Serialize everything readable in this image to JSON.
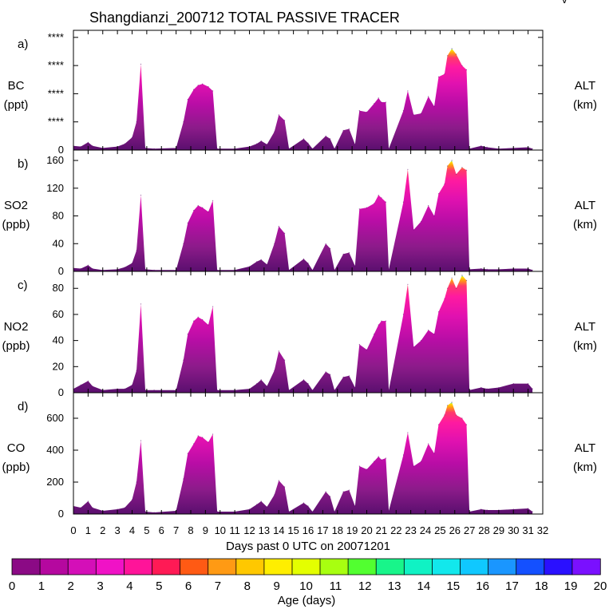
{
  "chart_data": {
    "type": "area",
    "title": "Shangdianzi_200712 TOTAL PASSIVE TRACER",
    "corner_mark": "v",
    "xlabel": "Days past 0 UTC on 20071201",
    "x_ticks": [
      "0",
      "1",
      "2",
      "3",
      "4",
      "5",
      "6",
      "7",
      "8",
      "9",
      "10",
      "11",
      "12",
      "13",
      "14",
      "15",
      "16",
      "17",
      "18",
      "19",
      "20",
      "21",
      "22",
      "23",
      "24",
      "25",
      "26",
      "27",
      "28",
      "29",
      "30",
      "31",
      "32"
    ],
    "xlim": [
      0,
      32
    ],
    "right_label": "ALT",
    "right_unit": "(km)",
    "panels": [
      {
        "letter": "a)",
        "species": "BC",
        "unit": "(ppt)",
        "ylim": [
          0,
          8500
        ],
        "y_ticks": [
          {
            "v": 0,
            "t": "0"
          },
          {
            "v": 2000,
            "t": "****"
          },
          {
            "v": 4000,
            "t": "****"
          },
          {
            "v": 6000,
            "t": "****"
          },
          {
            "v": 8000,
            "t": "****"
          }
        ],
        "series": [
          [
            0,
            300
          ],
          [
            0.5,
            250
          ],
          [
            1,
            550
          ],
          [
            1.3,
            300
          ],
          [
            2,
            150
          ],
          [
            3,
            250
          ],
          [
            3.5,
            450
          ],
          [
            4,
            900
          ],
          [
            4.3,
            2000
          ],
          [
            4.6,
            6100
          ],
          [
            4.9,
            150
          ],
          [
            5.5,
            100
          ],
          [
            7,
            150
          ],
          [
            7.5,
            2000
          ],
          [
            7.8,
            3600
          ],
          [
            8.2,
            4300
          ],
          [
            8.5,
            4600
          ],
          [
            8.8,
            4700
          ],
          [
            9.2,
            4500
          ],
          [
            9.5,
            4200
          ],
          [
            9.8,
            100
          ],
          [
            11,
            100
          ],
          [
            12,
            250
          ],
          [
            12.5,
            450
          ],
          [
            12.8,
            650
          ],
          [
            13.2,
            400
          ],
          [
            13.7,
            1300
          ],
          [
            14,
            2500
          ],
          [
            14.4,
            2100
          ],
          [
            14.7,
            100
          ],
          [
            15.7,
            800
          ],
          [
            16,
            500
          ],
          [
            16.3,
            100
          ],
          [
            17.2,
            1000
          ],
          [
            17.5,
            800
          ],
          [
            17.8,
            100
          ],
          [
            18.4,
            1400
          ],
          [
            18.8,
            1500
          ],
          [
            19.2,
            400
          ],
          [
            19.5,
            2800
          ],
          [
            20,
            2700
          ],
          [
            20.5,
            3300
          ],
          [
            20.8,
            3700
          ],
          [
            21,
            3400
          ],
          [
            21.3,
            3400
          ],
          [
            21.5,
            100
          ],
          [
            22.5,
            2800
          ],
          [
            22.8,
            4200
          ],
          [
            23.2,
            2500
          ],
          [
            23.7,
            2600
          ],
          [
            24.2,
            3800
          ],
          [
            24.6,
            3100
          ],
          [
            24.9,
            5200
          ],
          [
            25.3,
            5400
          ],
          [
            25.5,
            6700
          ],
          [
            25.8,
            7200
          ],
          [
            26.1,
            6800
          ],
          [
            26.5,
            6000
          ],
          [
            26.8,
            5700
          ],
          [
            27,
            100
          ],
          [
            27.8,
            300
          ],
          [
            28.2,
            200
          ],
          [
            29,
            100
          ],
          [
            30,
            150
          ],
          [
            31,
            200
          ],
          [
            31.3,
            100
          ]
        ]
      },
      {
        "letter": "b)",
        "species": "SO2",
        "unit": "(ppb)",
        "ylim": [
          0,
          175
        ],
        "y_ticks": [
          {
            "v": 0,
            "t": "0"
          },
          {
            "v": 40,
            "t": "40"
          },
          {
            "v": 80,
            "t": "80"
          },
          {
            "v": 120,
            "t": "120"
          },
          {
            "v": 160,
            "t": "160"
          }
        ],
        "series": [
          [
            0,
            5
          ],
          [
            0.5,
            4
          ],
          [
            1,
            9
          ],
          [
            1.3,
            4
          ],
          [
            2,
            2
          ],
          [
            3,
            3
          ],
          [
            3.5,
            6
          ],
          [
            4,
            12
          ],
          [
            4.3,
            30
          ],
          [
            4.6,
            110
          ],
          [
            4.9,
            3
          ],
          [
            5.5,
            2
          ],
          [
            7,
            2
          ],
          [
            7.5,
            40
          ],
          [
            7.8,
            70
          ],
          [
            8.2,
            88
          ],
          [
            8.5,
            95
          ],
          [
            8.8,
            92
          ],
          [
            9.2,
            86
          ],
          [
            9.5,
            102
          ],
          [
            9.8,
            2
          ],
          [
            11,
            2
          ],
          [
            12,
            7
          ],
          [
            12.5,
            14
          ],
          [
            12.8,
            17
          ],
          [
            13.2,
            10
          ],
          [
            13.7,
            40
          ],
          [
            14,
            65
          ],
          [
            14.4,
            55
          ],
          [
            14.7,
            2
          ],
          [
            15.7,
            18
          ],
          [
            16,
            12
          ],
          [
            16.3,
            2
          ],
          [
            17.2,
            40
          ],
          [
            17.5,
            33
          ],
          [
            17.8,
            2
          ],
          [
            18.4,
            25
          ],
          [
            18.8,
            27
          ],
          [
            19.2,
            8
          ],
          [
            19.5,
            90
          ],
          [
            20,
            92
          ],
          [
            20.5,
            98
          ],
          [
            20.8,
            110
          ],
          [
            21,
            106
          ],
          [
            21.3,
            100
          ],
          [
            21.5,
            3
          ],
          [
            22.5,
            100
          ],
          [
            22.8,
            147
          ],
          [
            23.2,
            60
          ],
          [
            23.7,
            72
          ],
          [
            24.2,
            95
          ],
          [
            24.6,
            80
          ],
          [
            24.9,
            112
          ],
          [
            25.3,
            126
          ],
          [
            25.5,
            152
          ],
          [
            25.8,
            160
          ],
          [
            26.1,
            140
          ],
          [
            26.5,
            150
          ],
          [
            26.8,
            146
          ],
          [
            27,
            3
          ],
          [
            27.8,
            4
          ],
          [
            28.2,
            3
          ],
          [
            29,
            3
          ],
          [
            30,
            4
          ],
          [
            31,
            4
          ],
          [
            31.3,
            2
          ]
        ]
      },
      {
        "letter": "c)",
        "species": "NO2",
        "unit": "(ppb)",
        "ylim": [
          0,
          93
        ],
        "y_ticks": [
          {
            "v": 0,
            "t": "0"
          },
          {
            "v": 20,
            "t": "20"
          },
          {
            "v": 40,
            "t": "40"
          },
          {
            "v": 60,
            "t": "60"
          },
          {
            "v": 80,
            "t": "80"
          }
        ],
        "series": [
          [
            0,
            3
          ],
          [
            0.5,
            6
          ],
          [
            1,
            9
          ],
          [
            1.3,
            5
          ],
          [
            2,
            2
          ],
          [
            3,
            3
          ],
          [
            3.5,
            3
          ],
          [
            4,
            6
          ],
          [
            4.3,
            17
          ],
          [
            4.6,
            68
          ],
          [
            4.9,
            2
          ],
          [
            5.5,
            2
          ],
          [
            7,
            2
          ],
          [
            7.5,
            25
          ],
          [
            7.8,
            45
          ],
          [
            8.2,
            55
          ],
          [
            8.5,
            58
          ],
          [
            8.8,
            56
          ],
          [
            9.2,
            52
          ],
          [
            9.5,
            66
          ],
          [
            9.8,
            2
          ],
          [
            11,
            2
          ],
          [
            12,
            3
          ],
          [
            12.5,
            7
          ],
          [
            12.8,
            10
          ],
          [
            13.2,
            5
          ],
          [
            13.7,
            17
          ],
          [
            14,
            32
          ],
          [
            14.4,
            25
          ],
          [
            14.7,
            2
          ],
          [
            15.7,
            10
          ],
          [
            16,
            7
          ],
          [
            16.3,
            2
          ],
          [
            17.2,
            16
          ],
          [
            17.5,
            14
          ],
          [
            17.8,
            2
          ],
          [
            18.4,
            12
          ],
          [
            18.8,
            13
          ],
          [
            19.2,
            4
          ],
          [
            19.5,
            37
          ],
          [
            20,
            33
          ],
          [
            20.5,
            45
          ],
          [
            20.8,
            52
          ],
          [
            21,
            55
          ],
          [
            21.3,
            55
          ],
          [
            21.5,
            2
          ],
          [
            22.5,
            60
          ],
          [
            22.8,
            83
          ],
          [
            23.2,
            35
          ],
          [
            23.7,
            40
          ],
          [
            24.2,
            48
          ],
          [
            24.6,
            45
          ],
          [
            24.9,
            62
          ],
          [
            25.3,
            72
          ],
          [
            25.5,
            80
          ],
          [
            25.8,
            88
          ],
          [
            26.1,
            80
          ],
          [
            26.5,
            90
          ],
          [
            26.8,
            86
          ],
          [
            27,
            2
          ],
          [
            27.8,
            4
          ],
          [
            28.2,
            3
          ],
          [
            29,
            4
          ],
          [
            30,
            7
          ],
          [
            31,
            7
          ],
          [
            31.3,
            3
          ]
        ]
      },
      {
        "letter": "d)",
        "species": "CO",
        "unit": "(ppb)",
        "ylim": [
          0,
          760
        ],
        "y_ticks": [
          {
            "v": 0,
            "t": "0"
          },
          {
            "v": 200,
            "t": "200"
          },
          {
            "v": 400,
            "t": "400"
          },
          {
            "v": 600,
            "t": "600"
          }
        ],
        "series": [
          [
            0,
            50
          ],
          [
            0.5,
            40
          ],
          [
            1,
            80
          ],
          [
            1.3,
            40
          ],
          [
            2,
            20
          ],
          [
            3,
            30
          ],
          [
            3.5,
            40
          ],
          [
            4,
            90
          ],
          [
            4.3,
            200
          ],
          [
            4.6,
            460
          ],
          [
            4.9,
            15
          ],
          [
            5.5,
            10
          ],
          [
            7,
            20
          ],
          [
            7.5,
            220
          ],
          [
            7.8,
            380
          ],
          [
            8.2,
            440
          ],
          [
            8.5,
            490
          ],
          [
            8.8,
            480
          ],
          [
            9.2,
            450
          ],
          [
            9.5,
            500
          ],
          [
            9.8,
            15
          ],
          [
            11,
            15
          ],
          [
            12,
            30
          ],
          [
            12.5,
            60
          ],
          [
            12.8,
            80
          ],
          [
            13.2,
            45
          ],
          [
            13.7,
            120
          ],
          [
            14,
            210
          ],
          [
            14.4,
            170
          ],
          [
            14.7,
            15
          ],
          [
            15.7,
            70
          ],
          [
            16,
            50
          ],
          [
            16.3,
            15
          ],
          [
            17.2,
            140
          ],
          [
            17.5,
            110
          ],
          [
            17.8,
            15
          ],
          [
            18.4,
            140
          ],
          [
            18.8,
            150
          ],
          [
            19.2,
            50
          ],
          [
            19.5,
            300
          ],
          [
            20,
            280
          ],
          [
            20.5,
            330
          ],
          [
            20.8,
            360
          ],
          [
            21,
            340
          ],
          [
            21.3,
            350
          ],
          [
            21.5,
            20
          ],
          [
            22.5,
            370
          ],
          [
            22.8,
            510
          ],
          [
            23.2,
            300
          ],
          [
            23.7,
            330
          ],
          [
            24.2,
            440
          ],
          [
            24.6,
            380
          ],
          [
            24.9,
            560
          ],
          [
            25.3,
            620
          ],
          [
            25.5,
            680
          ],
          [
            25.8,
            700
          ],
          [
            26.1,
            620
          ],
          [
            26.5,
            600
          ],
          [
            26.8,
            560
          ],
          [
            27,
            15
          ],
          [
            27.8,
            30
          ],
          [
            28.2,
            25
          ],
          [
            29,
            25
          ],
          [
            30,
            30
          ],
          [
            31,
            35
          ],
          [
            31.3,
            15
          ]
        ]
      }
    ],
    "colorbar": {
      "label": "Age (days)",
      "tick_labels": [
        "0",
        "1",
        "2",
        "3",
        "4",
        "5",
        "6",
        "7",
        "8",
        "9",
        "10",
        "11",
        "12",
        "13",
        "14",
        "15",
        "16",
        "17",
        "18",
        "19",
        "20"
      ],
      "colors": [
        "#8b0a85",
        "#b5089f",
        "#d40fb8",
        "#f012c6",
        "#ff1499",
        "#ff1a55",
        "#ff5a14",
        "#ff9a14",
        "#ffc800",
        "#ffee00",
        "#e4ff00",
        "#a8ff10",
        "#52ff30",
        "#18f58a",
        "#10f2c4",
        "#12e8ec",
        "#10c8ff",
        "#1a96ff",
        "#1450ff",
        "#2a10ff",
        "#7a10ff"
      ]
    }
  }
}
